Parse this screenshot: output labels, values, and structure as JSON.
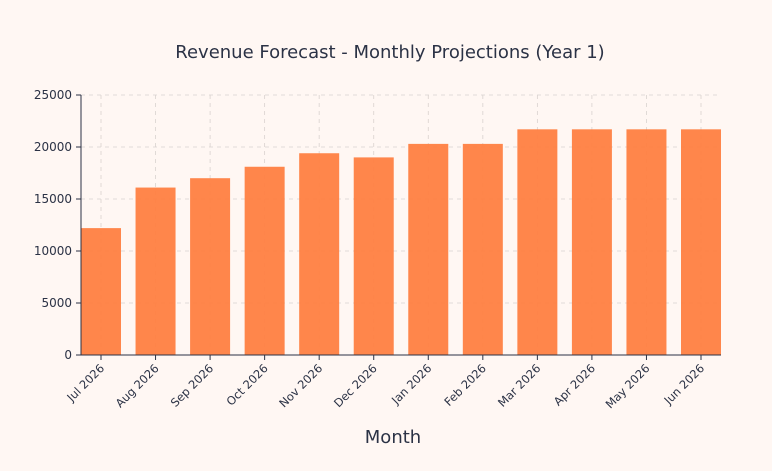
{
  "chart_data": {
    "type": "bar",
    "title": "Revenue Forecast - Monthly Projections (Year 1)",
    "xlabel": "Month",
    "ylabel": "",
    "categories": [
      "Jul 2026",
      "Aug 2026",
      "Sep 2026",
      "Oct 2026",
      "Nov 2026",
      "Dec 2026",
      "Jan 2026",
      "Feb 2026",
      "Mar 2026",
      "Apr 2026",
      "May 2026",
      "Jun 2026"
    ],
    "values": [
      12200,
      16100,
      17000,
      18100,
      19400,
      19000,
      20300,
      20300,
      21700,
      21700,
      21700,
      21700
    ],
    "ylim": [
      0,
      25000
    ],
    "yticks": [
      0,
      5000,
      10000,
      15000,
      20000,
      25000
    ],
    "grid": true,
    "bar_color": "#ff7f41",
    "grid_color": "#d9d2cf",
    "text_color": "#2b3245",
    "background": "#fff7f3"
  }
}
